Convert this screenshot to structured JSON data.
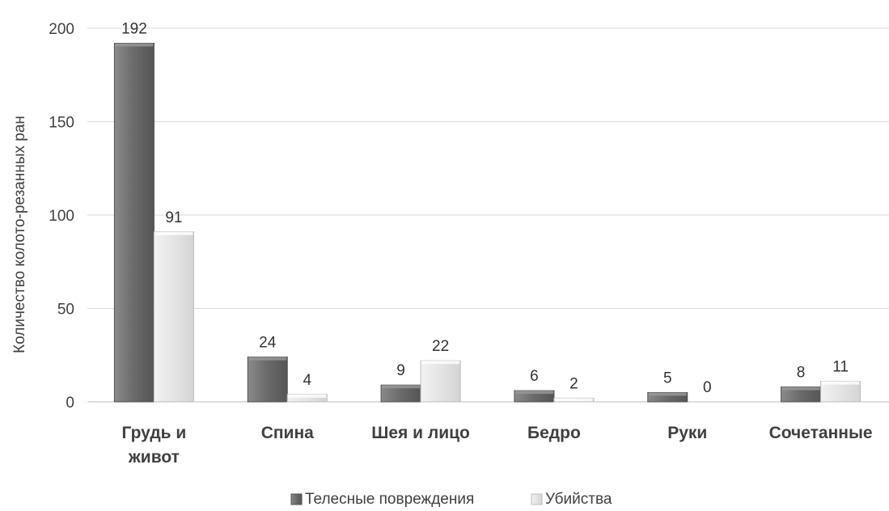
{
  "chart_data": {
    "type": "bar",
    "title": "",
    "xlabel": "",
    "ylabel": "Количество колото-резанных ран",
    "categories": [
      [
        "Грудь и",
        "живот"
      ],
      [
        "Спина"
      ],
      [
        "Шея и лицо"
      ],
      [
        "Бедро"
      ],
      [
        "Руки"
      ],
      [
        "Сочетанные"
      ]
    ],
    "series": [
      {
        "name": "Телесные повреждения",
        "values": [
          192,
          24,
          9,
          6,
          5,
          8
        ],
        "color": "#6f6f6f"
      },
      {
        "name": "Убийства",
        "values": [
          91,
          4,
          22,
          2,
          0,
          11
        ],
        "color": "#e6e6e6"
      }
    ],
    "ylim": [
      0,
      200
    ],
    "yticks": [
      0,
      50,
      100,
      150,
      200
    ],
    "grid": true,
    "legend": "bottom"
  }
}
